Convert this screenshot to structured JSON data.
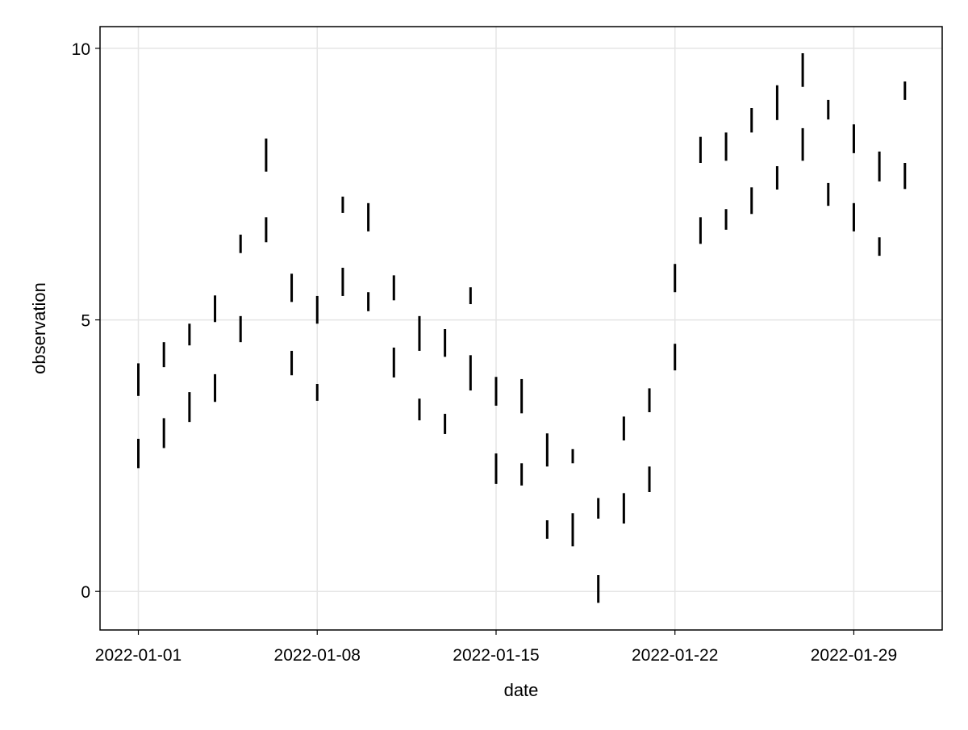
{
  "chart_data": {
    "type": "rangebar",
    "xlabel": "date",
    "ylabel": "observation",
    "x_ticks": [
      "2022-01-01",
      "2022-01-08",
      "2022-01-15",
      "2022-01-22",
      "2022-01-29"
    ],
    "y_ticks": [
      0,
      5,
      10
    ],
    "xlim": [
      "2021-12-30T12:00",
      "2022-02-01T11:00"
    ],
    "ylim": [
      -0.71,
      10.4
    ],
    "grid": true,
    "colors": {
      "bars": "#000000",
      "grid": "#e5e5e5",
      "frame": "#000000"
    },
    "dates": [
      "2022-01-01",
      "2022-01-02",
      "2022-01-03",
      "2022-01-04",
      "2022-01-05",
      "2022-01-06",
      "2022-01-07",
      "2022-01-08",
      "2022-01-09",
      "2022-01-10",
      "2022-01-11",
      "2022-01-12",
      "2022-01-13",
      "2022-01-14",
      "2022-01-15",
      "2022-01-16",
      "2022-01-17",
      "2022-01-18",
      "2022-01-19",
      "2022-01-20",
      "2022-01-21",
      "2022-01-22",
      "2022-01-23",
      "2022-01-24",
      "2022-01-25",
      "2022-01-26",
      "2022-01-27",
      "2022-01-28",
      "2022-01-29",
      "2022-01-30",
      "2022-01-31"
    ],
    "series": [
      {
        "low": [
          3.6,
          4.13,
          4.53,
          4.96,
          6.23,
          7.73,
          5.33,
          4.93,
          6.97,
          6.63,
          5.36,
          4.43,
          4.32,
          5.29,
          3.42,
          3.28,
          2.3,
          2.36,
          1.34,
          2.78,
          3.3,
          5.51,
          7.89,
          7.93,
          8.45,
          8.68,
          9.29,
          8.69,
          8.07,
          7.55,
          9.05
        ],
        "high": [
          4.2,
          4.59,
          4.93,
          5.45,
          6.57,
          8.34,
          5.85,
          5.44,
          7.27,
          7.15,
          5.82,
          5.07,
          4.83,
          5.6,
          3.95,
          3.91,
          2.91,
          2.62,
          1.72,
          3.22,
          3.74,
          6.03,
          8.37,
          8.45,
          8.9,
          9.32,
          9.91,
          9.05,
          8.6,
          8.1,
          9.39
        ]
      },
      {
        "low": [
          2.27,
          2.64,
          3.12,
          3.49,
          4.59,
          6.43,
          3.98,
          3.51,
          5.44,
          5.16,
          3.94,
          3.15,
          2.9,
          3.7,
          1.98,
          1.95,
          0.97,
          0.83,
          -0.21,
          1.25,
          1.83,
          4.07,
          6.4,
          6.66,
          6.95,
          7.4,
          7.93,
          7.1,
          6.63,
          6.18,
          7.41
        ],
        "high": [
          2.81,
          3.19,
          3.67,
          4.0,
          5.07,
          6.89,
          4.43,
          3.82,
          5.96,
          5.51,
          4.49,
          3.55,
          3.27,
          4.35,
          2.54,
          2.36,
          1.31,
          1.44,
          0.3,
          1.81,
          2.3,
          4.56,
          6.89,
          7.04,
          7.44,
          7.83,
          8.53,
          7.52,
          7.15,
          6.52,
          7.89
        ]
      }
    ]
  }
}
